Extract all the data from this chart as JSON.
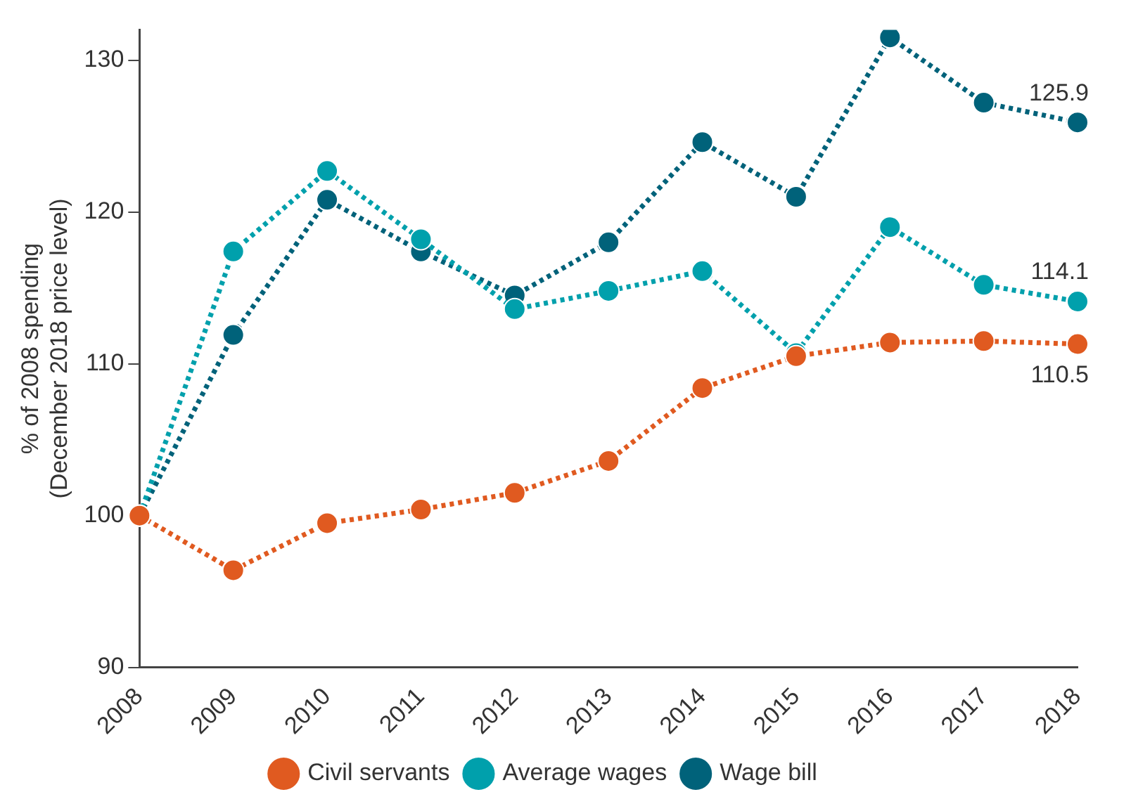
{
  "chart_data": {
    "type": "line",
    "ylabel": "% of 2008 spending\n(December 2018 price level)",
    "categories": [
      "2008",
      "2009",
      "2010",
      "2011",
      "2012",
      "2013",
      "2014",
      "2015",
      "2016",
      "2017",
      "2018"
    ],
    "series": [
      {
        "name": "Wage bill",
        "color": "#00627a",
        "values": [
          100,
          111.9,
          120.8,
          117.4,
          114.5,
          118.0,
          124.6,
          121.0,
          131.5,
          127.2,
          125.9
        ],
        "value_labels": [
          null,
          null,
          null,
          null,
          null,
          null,
          null,
          null,
          null,
          null,
          "125.9"
        ]
      },
      {
        "name": "Average wages",
        "color": "#00a0ac",
        "values": [
          100,
          117.4,
          122.7,
          118.2,
          113.6,
          114.8,
          116.1,
          110.7,
          119.0,
          115.2,
          114.1
        ],
        "value_labels": [
          null,
          null,
          null,
          null,
          null,
          null,
          null,
          null,
          null,
          null,
          "114.1"
        ]
      },
      {
        "name": "Civil servants",
        "color": "#e05a20",
        "values": [
          100,
          96.4,
          99.5,
          100.4,
          101.5,
          103.6,
          108.4,
          110.5,
          111.4,
          111.5,
          111.3
        ]
      }
    ],
    "annotations": [
      {
        "text": "110.5",
        "x": "2018",
        "y": 111.3
      }
    ],
    "ylim": [
      90,
      132
    ],
    "yticks": [
      90,
      100,
      110,
      120,
      130
    ],
    "grid": false,
    "legend": "bottom",
    "marker": "circle",
    "line_style": "dotted"
  }
}
